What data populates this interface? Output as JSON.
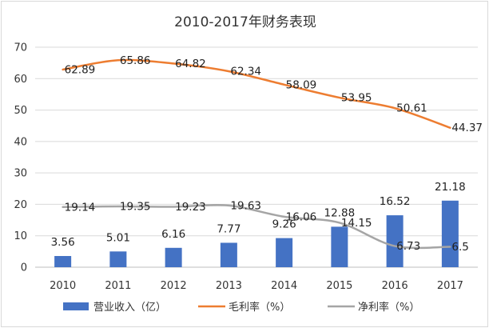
{
  "chart_data": {
    "type": "bar+line",
    "title": "2010-2017年财务表现",
    "categories": [
      "2010",
      "2011",
      "2012",
      "2013",
      "2014",
      "2015",
      "2016",
      "2017"
    ],
    "ylim": [
      0,
      70
    ],
    "yticks": [
      0,
      10,
      20,
      30,
      40,
      50,
      60,
      70
    ],
    "grid": true,
    "legend_position": "bottom",
    "series": [
      {
        "name": "营业收入（亿）",
        "kind": "bar",
        "color": "#4472C4",
        "values": [
          3.56,
          5.01,
          6.16,
          7.77,
          9.26,
          12.88,
          16.52,
          21.18
        ]
      },
      {
        "name": "毛利率（%）",
        "kind": "line",
        "color": "#ED7D31",
        "values": [
          62.89,
          65.86,
          64.82,
          62.34,
          58.09,
          53.95,
          50.61,
          44.37
        ]
      },
      {
        "name": "净利率（%）",
        "kind": "line",
        "color": "#A5A5A5",
        "values": [
          19.14,
          19.35,
          19.23,
          19.63,
          16.06,
          14.15,
          6.73,
          6.5
        ]
      }
    ]
  }
}
